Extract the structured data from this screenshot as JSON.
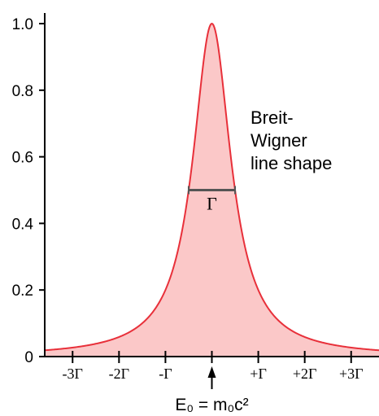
{
  "chart_data": {
    "type": "area",
    "title": "",
    "xlabel": "",
    "ylabel": "",
    "xlim": [
      -3.6,
      3.6
    ],
    "ylim": [
      0,
      1.0
    ],
    "x_ticks": [
      {
        "value": -3,
        "label": "-3Γ"
      },
      {
        "value": -2,
        "label": "-2Γ"
      },
      {
        "value": -1,
        "label": "-Γ"
      },
      {
        "value": 0,
        "label": ""
      },
      {
        "value": 1,
        "label": "+Γ"
      },
      {
        "value": 2,
        "label": "+2Γ"
      },
      {
        "value": 3,
        "label": "+3Γ"
      }
    ],
    "y_ticks": [
      {
        "value": 0,
        "label": "0"
      },
      {
        "value": 0.2,
        "label": "0.2"
      },
      {
        "value": 0.4,
        "label": "0.4"
      },
      {
        "value": 0.6,
        "label": "0.6"
      },
      {
        "value": 0.8,
        "label": "0.8"
      },
      {
        "value": 1.0,
        "label": "1.0"
      }
    ],
    "series": [
      {
        "curve": "lorentzian",
        "center": 0,
        "fwhm": 1,
        "peak": 1.0,
        "line_color": "#e8303a",
        "fill_color": "#fbc8c8"
      }
    ],
    "annotations": {
      "description": "Breit-\nWigner\nline shape",
      "width_marker": {
        "x_from": -0.5,
        "x_to": 0.5,
        "y": 0.5,
        "label": "Γ",
        "color": "#555555"
      },
      "center_arrow": {
        "x": 0,
        "label": "E₀ = m₀c²"
      }
    },
    "grid": false,
    "legend": "none",
    "colors": {
      "axis": "#000000",
      "line": "#e8303a",
      "fill": "#fbc8c8",
      "marker": "#555555"
    }
  }
}
